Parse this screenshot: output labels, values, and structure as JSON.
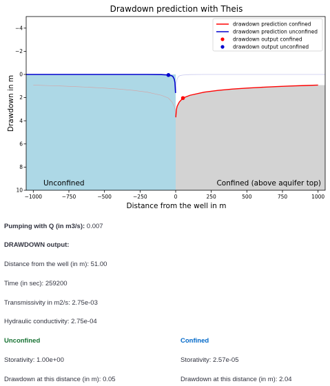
{
  "chart_data": {
    "type": "line",
    "title": "Drawdown prediction with Theis",
    "xlabel": "Distance from the well in m",
    "ylabel": "Drawdown in m",
    "xlim": [
      -1050,
      1050
    ],
    "ylim": [
      10,
      -5
    ],
    "x_ticks": [
      -1000,
      -750,
      -500,
      -250,
      0,
      250,
      500,
      750,
      1000
    ],
    "x_tick_labels": [
      "−1000",
      "−750",
      "−500",
      "−250",
      "0",
      "250",
      "500",
      "750",
      "1000"
    ],
    "y_ticks": [
      -4,
      -2,
      0,
      2,
      4,
      6,
      8,
      10
    ],
    "y_tick_labels": [
      "−4",
      "−2",
      "0",
      "2",
      "4",
      "6",
      "8",
      "10"
    ],
    "grid": false,
    "legend_position": "top-right",
    "series": [
      {
        "name": "drawdown prediction confined",
        "color": "#ff0000",
        "side": "right",
        "x": [
          1,
          5,
          10,
          25,
          51,
          100,
          200,
          300,
          400,
          500,
          600,
          700,
          800,
          900,
          1000
        ],
        "y": [
          3.7,
          3.05,
          2.76,
          2.39,
          2.04,
          1.8,
          1.53,
          1.37,
          1.26,
          1.18,
          1.11,
          1.05,
          1.0,
          0.96,
          0.92
        ]
      },
      {
        "name": "drawdown prediction unconfined",
        "color": "#0000cd",
        "side": "left",
        "x": [
          -1000,
          -500,
          -200,
          -100,
          -51,
          -30,
          -20,
          -10,
          -5,
          -1
        ],
        "y": [
          0.0,
          0.0,
          0.0,
          0.01,
          0.05,
          0.1,
          0.17,
          0.4,
          0.7,
          1.6
        ]
      },
      {
        "name": "drawdown output confined",
        "color": "#ff0000",
        "type": "point",
        "x": 51,
        "y": 2.04
      },
      {
        "name": "drawdown output unconfined",
        "color": "#0000cd",
        "type": "point",
        "x": -51,
        "y": 0.05
      }
    ],
    "annotations": [
      {
        "text": "Unconfined",
        "position": "bottom-left"
      },
      {
        "text": "Confined (above aquifer top)",
        "position": "bottom-right"
      }
    ],
    "colors": {
      "unconfined_fill": "#add8e6",
      "confined_fill": "#d3d3d3"
    }
  },
  "info": {
    "pumping_label": "Pumping with Q (in m3/s):",
    "pumping_value": " 0.007",
    "output_heading": "DRAWDOWN output:",
    "distance": "Distance from the well (in m): 51.00",
    "time": "Time (in sec): 259200",
    "transmissivity": "Transmissivity in m2/s: 2.75e-03",
    "conductivity": "Hydraulic conductivity: 2.75e-04",
    "unconfined_heading": "Unconfined",
    "confined_heading": "Confined",
    "unconfined_storativity": "Storativity: 1.00e+00",
    "confined_storativity": "Storativity: 2.57e-05",
    "unconfined_drawdown": "Drawdown at this distance (in m): 0.05",
    "confined_drawdown": "Drawdown at this distance (in m): 2.04"
  }
}
